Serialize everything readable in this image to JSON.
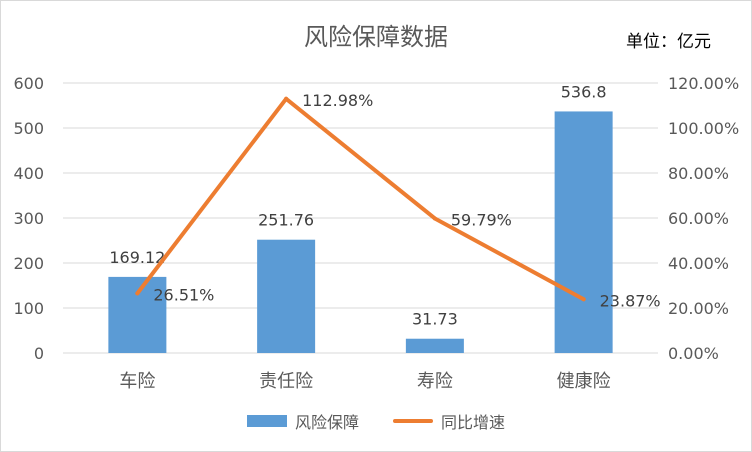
{
  "title": "风险保障数据",
  "unit": "单位：亿元",
  "chart_data": {
    "type": "bar",
    "categories": [
      "车险",
      "责任险",
      "寿险",
      "健康险"
    ],
    "series": [
      {
        "name": "风险保障",
        "type": "bar",
        "axis": "left",
        "values": [
          169.12,
          251.76,
          31.73,
          536.8
        ],
        "labels": [
          "169.12",
          "251.76",
          "31.73",
          "536.8"
        ],
        "color": "#5b9bd5"
      },
      {
        "name": "同比增速",
        "type": "line",
        "axis": "right",
        "values": [
          26.51,
          112.98,
          59.79,
          23.87
        ],
        "labels": [
          "26.51%",
          "112.98%",
          "59.79%",
          "23.87%"
        ],
        "color": "#ed7d31"
      }
    ],
    "y_left": {
      "min": 0,
      "max": 600,
      "ticks": [
        "0",
        "100",
        "200",
        "300",
        "400",
        "500",
        "600"
      ]
    },
    "y_right": {
      "min": 0,
      "max": 120,
      "ticks": [
        "0.00%",
        "20.00%",
        "40.00%",
        "60.00%",
        "80.00%",
        "100.00%",
        "120.00%"
      ]
    },
    "grid": true,
    "legend_position": "bottom"
  }
}
